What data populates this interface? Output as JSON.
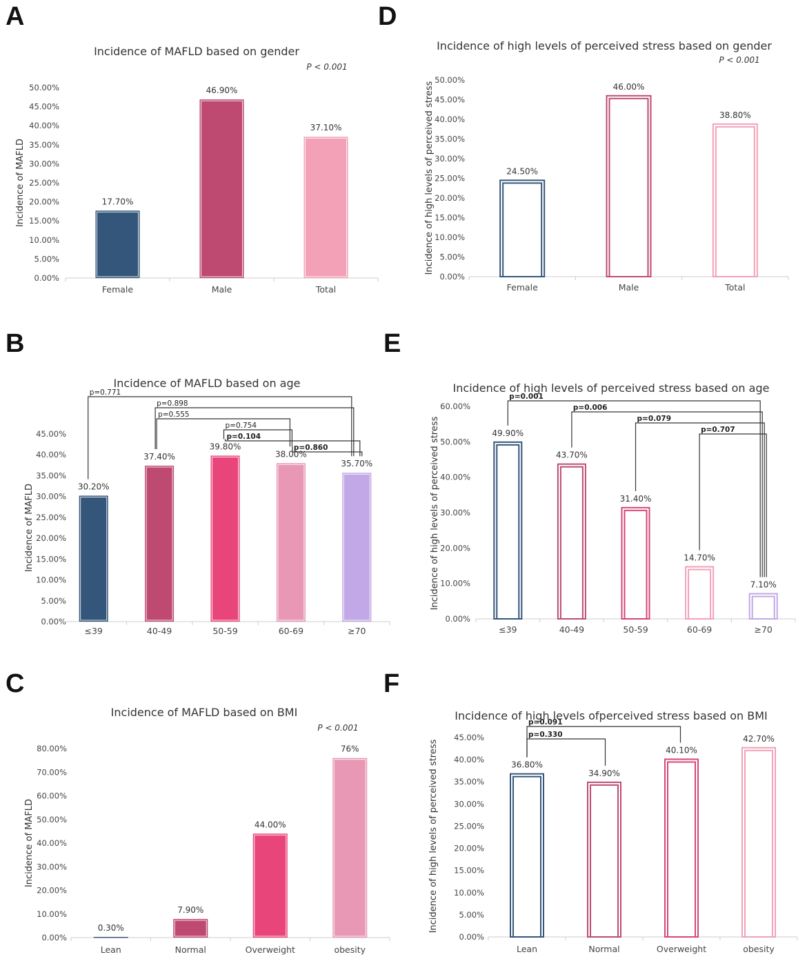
{
  "chart_data": [
    {
      "id": "A",
      "type": "bar",
      "style": "filled",
      "title": "Incidence of MAFLD based on gender",
      "ylabel": "Incidence of MAFLD",
      "xlabel": "",
      "ylim": [
        0,
        50
      ],
      "ytick_step": 5,
      "ytick_decimals": 2,
      "categories": [
        "Female",
        "Male",
        "Total"
      ],
      "values": [
        17.7,
        46.9,
        37.1
      ],
      "value_labels": [
        "17.70%",
        "46.90%",
        "37.10%"
      ],
      "colors": [
        "#34567a",
        "#be4a72",
        "#f2a1b7"
      ],
      "p_note": "P < 0.001",
      "comparisons": []
    },
    {
      "id": "B",
      "type": "bar",
      "style": "filled",
      "title": "Incidence of MAFLD based on age",
      "ylabel": "Incidence of MAFLD",
      "xlabel": "",
      "ylim": [
        0,
        45
      ],
      "ytick_step": 5,
      "ytick_decimals": 2,
      "categories": [
        "≤39",
        "40-49",
        "50-59",
        "60-69",
        "≥70"
      ],
      "values": [
        30.2,
        37.4,
        39.8,
        38.0,
        35.7
      ],
      "value_labels": [
        "30.20%",
        "37.40%",
        "39.80%",
        "38.00%",
        "35.70%"
      ],
      "colors": [
        "#34567a",
        "#be4a72",
        "#e8467a",
        "#e898b4",
        "#c2a8e6"
      ],
      "p_note": "",
      "comparisons": [
        {
          "from": 0,
          "to": 4,
          "label": "p=0.771",
          "bold": false
        },
        {
          "from": 1,
          "to": 4,
          "label": "p=0.898",
          "bold": false
        },
        {
          "from": 1,
          "to": 3,
          "label": "p=0.555",
          "bold": false
        },
        {
          "from": 2,
          "to": 3,
          "label": "p=0.754",
          "bold": false
        },
        {
          "from": 2,
          "to": 4,
          "label": "p=0.104",
          "bold": true
        },
        {
          "from": 3,
          "to": 4,
          "label": "p=0.860",
          "bold": true
        }
      ]
    },
    {
      "id": "C",
      "type": "bar",
      "style": "filled",
      "title": "Incidence of MAFLD based on BMI",
      "ylabel": "Incidence of MAFLD",
      "xlabel": "",
      "ylim": [
        0,
        80
      ],
      "ytick_step": 10,
      "ytick_decimals": 2,
      "categories": [
        "Lean",
        "Normal",
        "Overweight",
        "obesity"
      ],
      "values": [
        0.3,
        7.9,
        44.0,
        76.0
      ],
      "value_labels": [
        "0.30%",
        "7.90%",
        "44.00%",
        "76%"
      ],
      "colors": [
        "#34567a",
        "#be4a72",
        "#e8467a",
        "#e898b4"
      ],
      "p_note": "P < 0.001",
      "comparisons": []
    },
    {
      "id": "D",
      "type": "bar",
      "style": "outline",
      "title": "Incidence of high levels of perceived stress based on gender",
      "ylabel": "Incidence of high levels of perceived stress",
      "xlabel": "",
      "ylim": [
        0,
        50
      ],
      "ytick_step": 5,
      "ytick_decimals": 2,
      "categories": [
        "Female",
        "Male",
        "Total"
      ],
      "values": [
        24.5,
        46.0,
        38.8
      ],
      "value_labels": [
        "24.50%",
        "46.00%",
        "38.80%"
      ],
      "colors": [
        "#34567a",
        "#be4a72",
        "#f2a1b7"
      ],
      "p_note": "P < 0.001",
      "comparisons": []
    },
    {
      "id": "E",
      "type": "bar",
      "style": "outline",
      "title": "Incidence of high levels of perceived stress based on age",
      "ylabel": "Incidence of high levels of perceived stress",
      "xlabel": "",
      "ylim": [
        0,
        60
      ],
      "ytick_step": 10,
      "ytick_decimals": 2,
      "categories": [
        "≤39",
        "40-49",
        "50-59",
        "60-69",
        "≥70"
      ],
      "values": [
        49.9,
        43.7,
        31.4,
        14.7,
        7.1
      ],
      "value_labels": [
        "49.90%",
        "43.70%",
        "31.40%",
        "14.70%",
        "7.10%"
      ],
      "colors": [
        "#34567a",
        "#be4a72",
        "#d6457a",
        "#f2a1b7",
        "#c2a8e6"
      ],
      "p_note": "",
      "comparisons": [
        {
          "from": 0,
          "to": 4,
          "label": "p=0.001",
          "bold": true
        },
        {
          "from": 1,
          "to": 4,
          "label": "p=0.006",
          "bold": true
        },
        {
          "from": 2,
          "to": 4,
          "label": "p=0.079",
          "bold": true
        },
        {
          "from": 3,
          "to": 4,
          "label": "p=0.707",
          "bold": true
        }
      ]
    },
    {
      "id": "F",
      "type": "bar",
      "style": "outline",
      "title": "Incidence of high levels ofperceived stress based on BMI",
      "ylabel": "Incidence of high levels of perceived stress",
      "xlabel": "",
      "ylim": [
        0,
        45
      ],
      "ytick_step": 5,
      "ytick_decimals": 2,
      "categories": [
        "Lean",
        "Normal",
        "Overweight",
        "obesity"
      ],
      "values": [
        36.8,
        34.9,
        40.1,
        42.7
      ],
      "value_labels": [
        "36.80%",
        "34.90%",
        "40.10%",
        "42.70%"
      ],
      "colors": [
        "#34567a",
        "#be4a72",
        "#d6457a",
        "#f2a1b7"
      ],
      "p_note": "",
      "comparisons": [
        {
          "from": 0,
          "to": 2,
          "label": "p=0.091",
          "bold": true
        },
        {
          "from": 0,
          "to": 1,
          "label": "p=0.330",
          "bold": true
        }
      ]
    }
  ]
}
